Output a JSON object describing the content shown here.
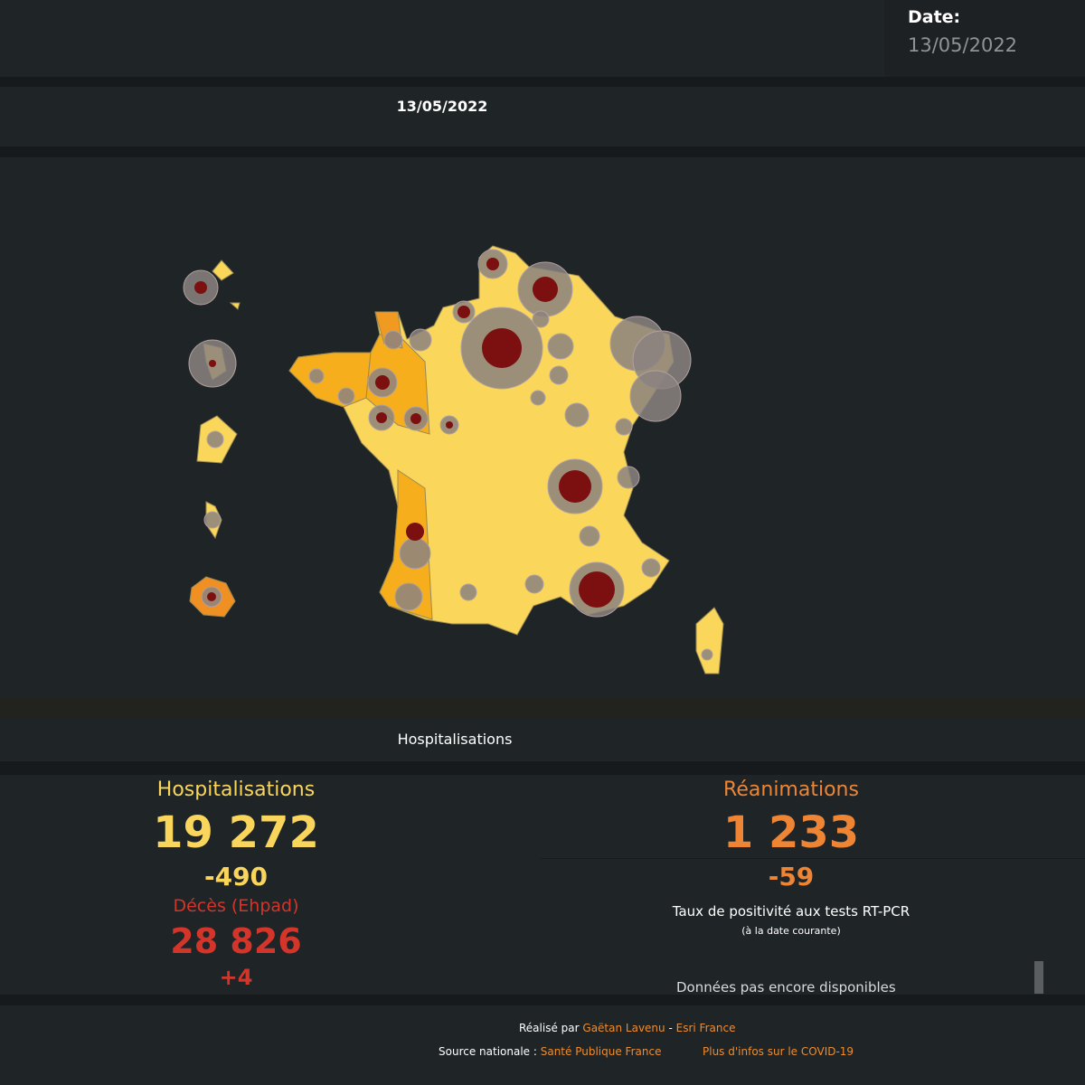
{
  "header": {
    "date_label": "Date:",
    "date_value": "13/05/2022"
  },
  "map_panel": {
    "title": "13/05/2022"
  },
  "chart_panel": {
    "title": "Hospitalisations"
  },
  "stats": {
    "hospitalisations": {
      "label": "Hospitalisations",
      "value": "19 272",
      "change": "-490"
    },
    "deces": {
      "label": "Décès (Ehpad)",
      "value": "28 826",
      "change": "+4"
    },
    "reanimations": {
      "label": "Réanimations",
      "value": "1 233",
      "change": "-59"
    },
    "positivite": {
      "label": "Taux de positivité aux tests RT-PCR",
      "sublabel": "(à la date courante)",
      "message": "Données pas encore disponibles"
    }
  },
  "footer": {
    "made_by": "Réalisé par",
    "author": "Gaëtan Lavenu",
    "separator": "-",
    "org": "Esri France",
    "source_label": "Source nationale :",
    "source": "Santé Publique France",
    "more_info": "Plus d'infos sur le COVID-19"
  }
}
